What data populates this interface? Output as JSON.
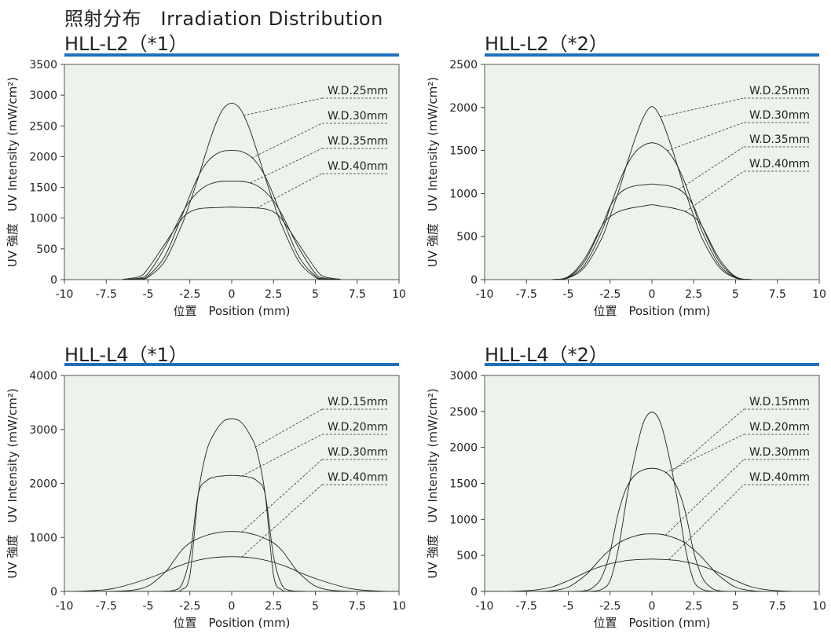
{
  "page": {
    "title": "照射分布　Irradiation Distribution"
  },
  "colors": {
    "accent": "#1f6fbe",
    "plot_bg": "#ecf3ec",
    "curve": "#222222"
  },
  "chart_data": [
    {
      "type": "line",
      "title": "HLL-L2（*1）",
      "xlabel": "位置　Position (mm)",
      "ylabel": "UV 強度　UV Intensity (mW/cm²)",
      "xlim": [
        -10,
        10
      ],
      "ylim": [
        0,
        3500
      ],
      "xticks": [
        -10,
        -7.5,
        -5,
        -2.5,
        0,
        2.5,
        5,
        7.5,
        10
      ],
      "xtick_labels": [
        "-10",
        "-7.5",
        "-5",
        "-2.5",
        "0",
        "2.5",
        "5",
        "7.5",
        "10"
      ],
      "yticks": [
        0,
        500,
        1000,
        1500,
        2000,
        2500,
        3000,
        3500
      ],
      "ytick_labels": [
        "0",
        "500",
        "1000",
        "1500",
        "2000",
        "2500",
        "3000",
        "3500"
      ],
      "x": [
        -6.5,
        -5.5,
        -5,
        -4,
        -3,
        -2.5,
        -2,
        -1.5,
        -1,
        -0.5,
        0,
        0.5,
        1,
        1.5,
        2,
        2.5,
        3,
        4,
        5,
        5.5,
        6.5
      ],
      "series": [
        {
          "name": "W.D.25mm",
          "values": [
            0,
            10,
            40,
            300,
            880,
            1250,
            1660,
            2100,
            2500,
            2780,
            2870,
            2780,
            2500,
            2100,
            1660,
            1250,
            880,
            300,
            40,
            10,
            0
          ]
        },
        {
          "name": "W.D.30mm",
          "values": [
            0,
            15,
            60,
            380,
            1020,
            1370,
            1680,
            1900,
            2030,
            2090,
            2100,
            2090,
            2030,
            1900,
            1680,
            1370,
            1020,
            380,
            60,
            15,
            0
          ]
        },
        {
          "name": "W.D.35mm",
          "values": [
            0,
            25,
            100,
            520,
            1060,
            1280,
            1430,
            1530,
            1580,
            1600,
            1600,
            1600,
            1580,
            1530,
            1430,
            1280,
            1060,
            520,
            100,
            25,
            0
          ]
        },
        {
          "name": "W.D.40mm",
          "values": [
            5,
            50,
            180,
            580,
            980,
            1100,
            1150,
            1165,
            1170,
            1175,
            1180,
            1175,
            1170,
            1165,
            1150,
            1100,
            980,
            580,
            180,
            50,
            5
          ]
        }
      ]
    },
    {
      "type": "line",
      "title": "HLL-L2（*2）",
      "xlabel": "位置　Position (mm)",
      "ylabel": "UV 強度　UV Intensity (mW/cm²)",
      "xlim": [
        -10,
        10
      ],
      "ylim": [
        0,
        2500
      ],
      "xticks": [
        -10,
        -7.5,
        -5,
        -2.5,
        0,
        2.5,
        5,
        7.5,
        10
      ],
      "xtick_labels": [
        "-10",
        "-7.5",
        "-5",
        "-2.5",
        "0",
        "2.5",
        "5",
        "7.5",
        "10"
      ],
      "yticks": [
        0,
        500,
        1000,
        1500,
        2000,
        2500
      ],
      "ytick_labels": [
        "0",
        "500",
        "1000",
        "1500",
        "2000",
        "2500"
      ],
      "x": [
        -6,
        -5,
        -4,
        -3,
        -2.5,
        -2,
        -1.5,
        -1,
        -0.5,
        0,
        0.5,
        1,
        1.5,
        2,
        2.5,
        3,
        4,
        5,
        6
      ],
      "series": [
        {
          "name": "W.D.25mm",
          "values": [
            0,
            20,
            150,
            480,
            740,
            1020,
            1340,
            1640,
            1890,
            2010,
            1890,
            1640,
            1340,
            1020,
            740,
            480,
            150,
            20,
            0
          ]
        },
        {
          "name": "W.D.30mm",
          "values": [
            0,
            25,
            180,
            560,
            840,
            1110,
            1330,
            1480,
            1560,
            1590,
            1560,
            1480,
            1330,
            1110,
            840,
            560,
            180,
            25,
            0
          ]
        },
        {
          "name": "W.D.35mm",
          "values": [
            0,
            30,
            220,
            620,
            850,
            990,
            1060,
            1090,
            1100,
            1110,
            1100,
            1090,
            1060,
            990,
            850,
            620,
            220,
            30,
            0
          ]
        },
        {
          "name": "W.D.40mm",
          "values": [
            0,
            35,
            250,
            620,
            730,
            790,
            820,
            840,
            855,
            870,
            855,
            840,
            820,
            790,
            730,
            620,
            250,
            35,
            0
          ]
        }
      ]
    },
    {
      "type": "line",
      "title": "HLL-L4（*1）",
      "xlabel": "位置　Position (mm)",
      "ylabel": "UV 強度　UV Intensity (mW/cm²)",
      "xlim": [
        -10,
        10
      ],
      "ylim": [
        0,
        4000
      ],
      "xticks": [
        -10,
        -7.5,
        -5,
        -2.5,
        0,
        2.5,
        5,
        7.5,
        10
      ],
      "xtick_labels": [
        "-10",
        "-7.5",
        "-5",
        "-2.5",
        "0",
        "2.5",
        "5",
        "7.5",
        "10"
      ],
      "yticks": [
        0,
        1000,
        2000,
        3000,
        4000
      ],
      "ytick_labels": [
        "0",
        "1000",
        "2000",
        "3000",
        "4000"
      ],
      "x": [
        -10,
        -9,
        -8,
        -7,
        -6,
        -5,
        -4,
        -3.5,
        -3,
        -2.5,
        -2,
        -1.5,
        -1,
        -0.5,
        0,
        0.5,
        1,
        1.5,
        2,
        2.5,
        3,
        3.5,
        4,
        5,
        6,
        7,
        8,
        9,
        10
      ],
      "series": [
        {
          "name": "W.D.15mm",
          "values": [
            0,
            0,
            0,
            0,
            0,
            0,
            0,
            5,
            30,
            300,
            1800,
            2600,
            2950,
            3150,
            3200,
            3150,
            2950,
            2600,
            1800,
            300,
            30,
            5,
            0,
            0,
            0,
            0,
            0,
            0,
            0
          ]
        },
        {
          "name": "W.D.20mm",
          "values": [
            0,
            0,
            0,
            0,
            0,
            0,
            5,
            20,
            120,
            650,
            1800,
            2050,
            2120,
            2140,
            2150,
            2140,
            2120,
            2050,
            1800,
            650,
            120,
            20,
            5,
            0,
            0,
            0,
            0,
            0,
            0
          ]
        },
        {
          "name": "W.D.30mm",
          "values": [
            0,
            0,
            0,
            5,
            20,
            100,
            350,
            550,
            760,
            900,
            980,
            1040,
            1080,
            1105,
            1110,
            1105,
            1080,
            1040,
            980,
            900,
            760,
            550,
            350,
            100,
            20,
            5,
            0,
            0,
            0
          ]
        },
        {
          "name": "W.D.40mm",
          "values": [
            0,
            5,
            20,
            60,
            140,
            240,
            360,
            430,
            490,
            540,
            580,
            610,
            630,
            640,
            645,
            640,
            630,
            610,
            580,
            540,
            490,
            430,
            360,
            240,
            140,
            60,
            20,
            5,
            0
          ]
        }
      ]
    },
    {
      "type": "line",
      "title": "HLL-L4（*2）",
      "xlabel": "位置　Position (mm)",
      "ylabel": "UV 強度　UV Intensity (mW/cm²)",
      "xlim": [
        -10,
        10
      ],
      "ylim": [
        0,
        3000
      ],
      "xticks": [
        -10,
        -7.5,
        -5,
        -2.5,
        0,
        2.5,
        5,
        7.5,
        10
      ],
      "xtick_labels": [
        "-10",
        "-7.5",
        "-5",
        "-2.5",
        "0",
        "2.5",
        "5",
        "7.5",
        "10"
      ],
      "yticks": [
        0,
        500,
        1000,
        1500,
        2000,
        2500,
        3000
      ],
      "ytick_labels": [
        "0",
        "500",
        "1000",
        "1500",
        "2000",
        "2500",
        "3000"
      ],
      "x": [
        -10,
        -9,
        -8,
        -7,
        -6,
        -5,
        -4,
        -3.5,
        -3,
        -2.5,
        -2,
        -1.5,
        -1,
        -0.5,
        0,
        0.5,
        1,
        1.5,
        2,
        2.5,
        3,
        3.5,
        4,
        5,
        6,
        7,
        8,
        9,
        10
      ],
      "series": [
        {
          "name": "W.D.15mm",
          "values": [
            0,
            0,
            0,
            0,
            0,
            0,
            0,
            5,
            30,
            150,
            600,
            1300,
            1900,
            2350,
            2490,
            2350,
            1900,
            1300,
            600,
            150,
            30,
            5,
            0,
            0,
            0,
            0,
            0,
            0,
            0
          ]
        },
        {
          "name": "W.D.20mm",
          "values": [
            0,
            0,
            0,
            0,
            0,
            0,
            10,
            60,
            200,
            550,
            1100,
            1450,
            1620,
            1690,
            1710,
            1690,
            1620,
            1450,
            1100,
            550,
            200,
            60,
            10,
            0,
            0,
            0,
            0,
            0,
            0
          ]
        },
        {
          "name": "W.D.30mm",
          "values": [
            0,
            0,
            0,
            0,
            10,
            60,
            220,
            340,
            470,
            580,
            670,
            730,
            770,
            795,
            800,
            795,
            770,
            730,
            670,
            580,
            470,
            340,
            220,
            60,
            10,
            0,
            0,
            0,
            0
          ]
        },
        {
          "name": "W.D.40mm",
          "values": [
            0,
            0,
            5,
            20,
            60,
            150,
            260,
            310,
            350,
            385,
            410,
            430,
            440,
            445,
            450,
            445,
            440,
            430,
            410,
            385,
            350,
            310,
            260,
            150,
            60,
            20,
            5,
            0,
            0
          ]
        }
      ]
    }
  ]
}
